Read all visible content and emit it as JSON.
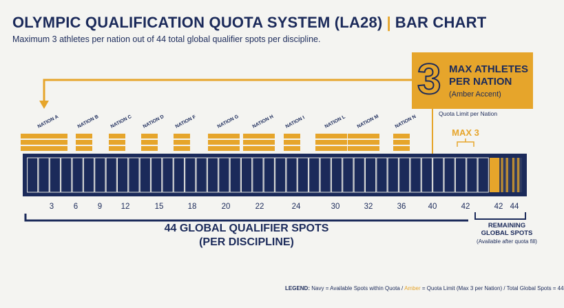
{
  "title": "OLYMPIC QUALIFICATION QUOTA SYSTEM (LA28)",
  "title_separator": "|",
  "title_suffix": "BAR CHART",
  "subtitle": "Maximum 3 athletes per nation out of 44 total global qualifier spots per discipline.",
  "callout": {
    "number": "3",
    "line1": "MAX ATHLETES",
    "line2": "PER NATION",
    "line3": "(Amber Accent)"
  },
  "quota_note": "Quota Limit per Nation",
  "max_label": "MAX 3",
  "total_label_line1": "44 GLOBAL QUALIFIER SPOTS",
  "total_label_line2": "(PER DISCIPLINE)",
  "remaining": {
    "line1": "REMAINING",
    "line2": "GLOBAL SPOTS",
    "line3": "(Available after quota fill)"
  },
  "legend": {
    "prefix": "LEGEND: ",
    "navy_word": "Navy",
    "navy_text": " = Available Spots within Quota / ",
    "amber_word": "Amber",
    "amber_text": " = Quota Limit (Max 3 per Nation) / Total Global Spots = 44"
  },
  "colors": {
    "navy": "#1b2a5a",
    "amber": "#e6a52b",
    "background": "#f4f4f1"
  },
  "chart_data": {
    "type": "bar",
    "total_spots": 44,
    "quota_per_nation": 3,
    "nations": [
      {
        "name": "NATION A",
        "blocks": 3
      },
      {
        "name": "NATION B",
        "blocks": 1
      },
      {
        "name": "NATION C",
        "blocks": 1
      },
      {
        "name": "NATION D",
        "blocks": 1
      },
      {
        "name": "NATION F",
        "blocks": 1
      },
      {
        "name": "NATION G",
        "blocks": 2
      },
      {
        "name": "NATION H",
        "blocks": 2
      },
      {
        "name": "NATION I",
        "blocks": 1
      },
      {
        "name": "NATION L",
        "blocks": 2
      },
      {
        "name": "NATION M",
        "blocks": 2
      },
      {
        "name": "NATION N",
        "blocks": 1
      }
    ],
    "segments": [
      {
        "type": "navy",
        "count": 41
      },
      {
        "type": "amber",
        "count": 1
      },
      {
        "type": "remaining",
        "count": 2
      }
    ],
    "tick_labels": [
      "3",
      "6",
      "9",
      "12",
      "15",
      "18",
      "20",
      "22",
      "24",
      "30",
      "32",
      "36",
      "40",
      "42",
      "42",
      "44"
    ]
  }
}
